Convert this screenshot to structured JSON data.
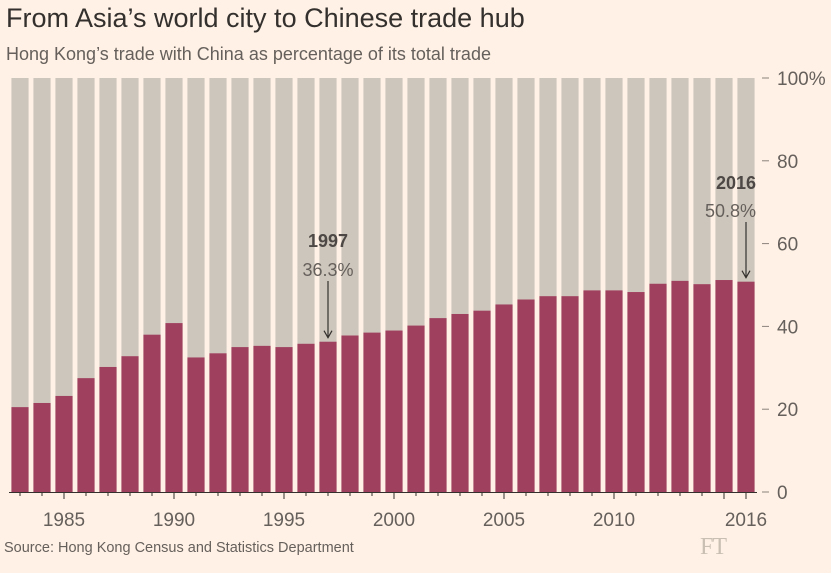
{
  "header": {
    "title": "From Asia’s world city to Chinese trade hub",
    "subtitle": "Hong Kong’s trade with China as percentage of its total trade"
  },
  "footer": {
    "source": "Source: Hong Kong Census and Statistics Department",
    "logo": "FT"
  },
  "colors": {
    "background": "#fff1e5",
    "bar": "#a0405f",
    "bar_total": "#cdc6bc",
    "text": "#33302e",
    "muted": "#66605c",
    "annotation_bold": "#4d4845"
  },
  "chart_data": {
    "type": "bar",
    "stacked_to_100": true,
    "title": "From Asia’s world city to Chinese trade hub",
    "subtitle": "Hong Kong’s trade with China as percentage of its total trade",
    "xlabel": "",
    "ylabel": "",
    "ylim": [
      0,
      100
    ],
    "y_ticks": [
      0,
      20,
      40,
      60,
      80,
      100
    ],
    "y_tick_labels": [
      "0",
      "20",
      "40",
      "60",
      "80",
      "100%"
    ],
    "x_tick_labels": [
      "1985",
      "1990",
      "1995",
      "2000",
      "2005",
      "2010",
      "2016"
    ],
    "grid": false,
    "categories": [
      1983,
      1984,
      1985,
      1986,
      1987,
      1988,
      1989,
      1990,
      1991,
      1992,
      1993,
      1994,
      1995,
      1996,
      1997,
      1998,
      1999,
      2000,
      2001,
      2002,
      2003,
      2004,
      2005,
      2006,
      2007,
      2008,
      2009,
      2010,
      2011,
      2012,
      2013,
      2014,
      2015,
      2016
    ],
    "series": [
      {
        "name": "Trade with China (% of total)",
        "values": [
          20.5,
          21.5,
          23.2,
          27.5,
          30.2,
          32.8,
          38.0,
          40.8,
          32.5,
          33.5,
          35.0,
          35.3,
          35.0,
          35.8,
          36.3,
          37.8,
          38.5,
          39.0,
          40.2,
          42.0,
          43.0,
          43.8,
          45.3,
          46.5,
          47.3,
          47.3,
          48.7,
          48.7,
          48.3,
          50.3,
          51.0,
          50.2,
          51.2,
          50.8
        ]
      }
    ],
    "annotations": [
      {
        "year": "1997",
        "label": "36.3%",
        "value": 36.3
      },
      {
        "year": "2016",
        "label": "50.8%",
        "value": 50.8
      }
    ]
  }
}
